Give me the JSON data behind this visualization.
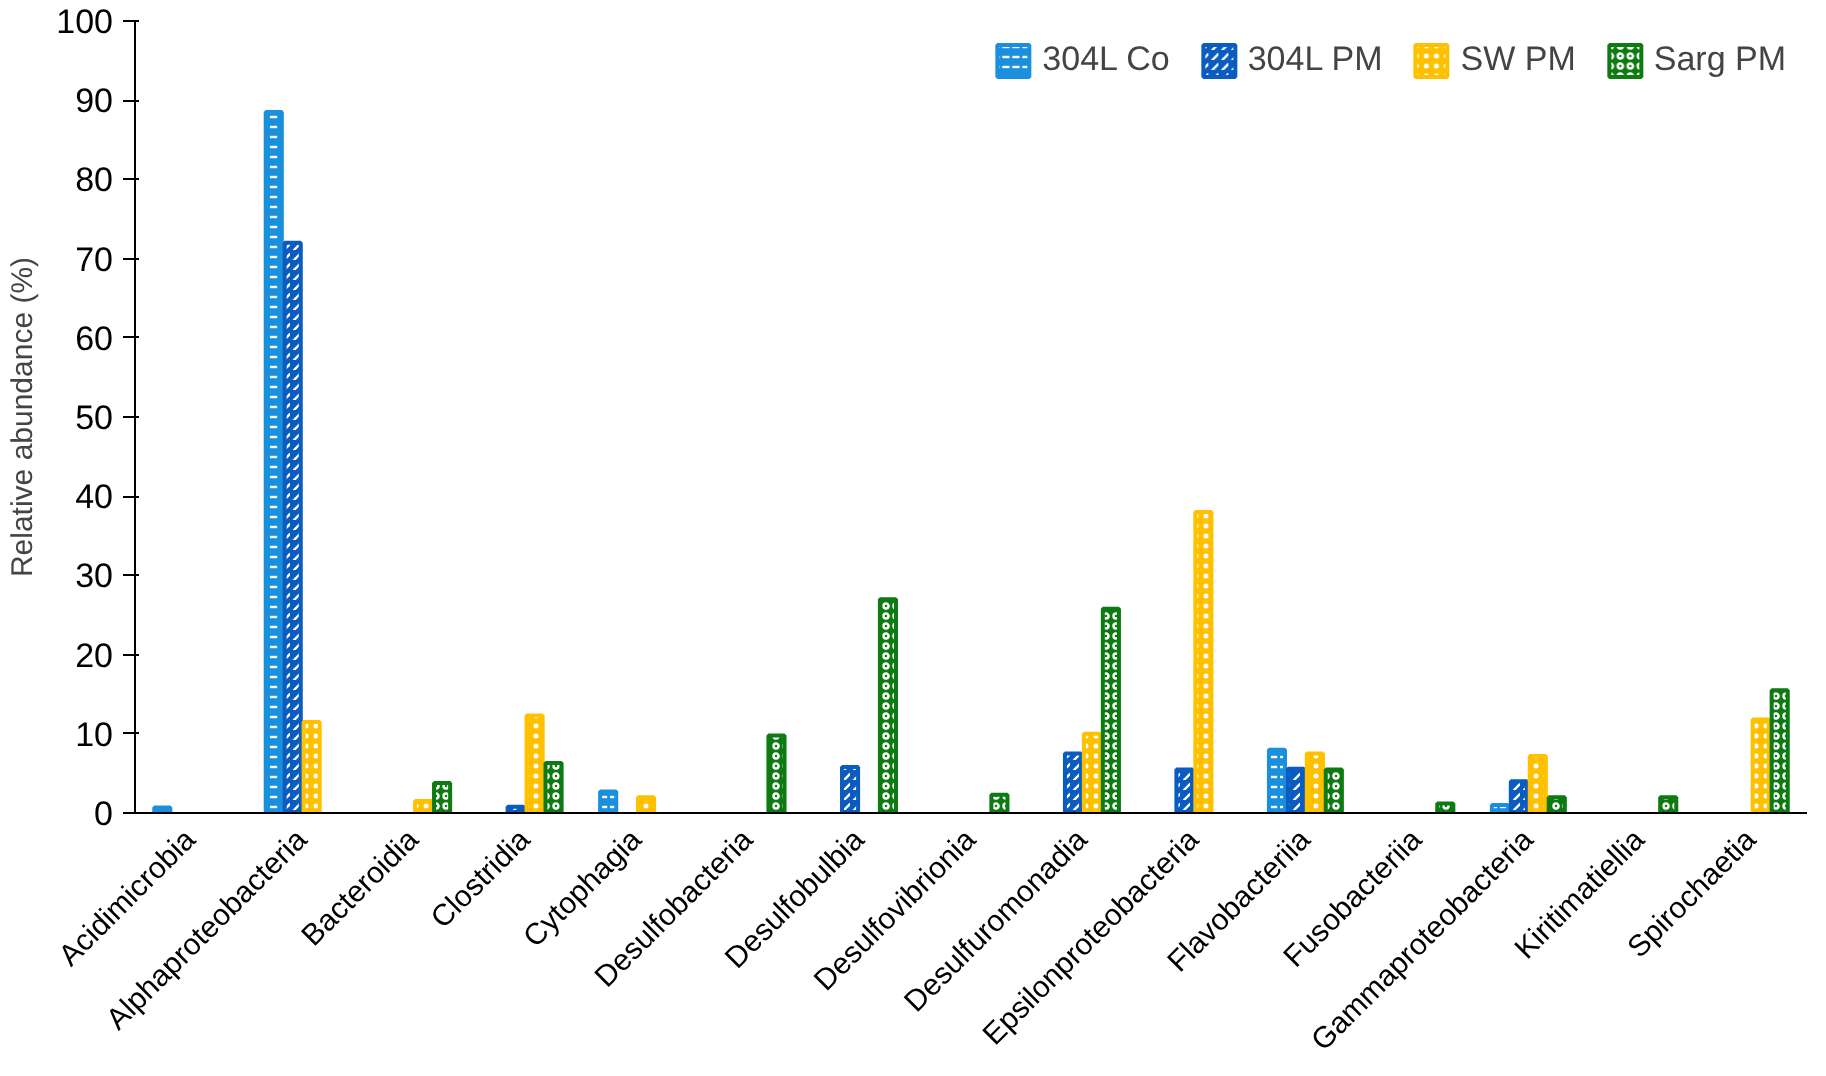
{
  "chart_data": {
    "type": "bar",
    "ylabel": "Relative abundance (%)",
    "categories": [
      "Acidimicrobia",
      "Alphaproteobacteria",
      "Bacteroidia",
      "Clostridia",
      "Cytophagia",
      "Desulfobacteria",
      "Desulfobulbia",
      "Desulfovibrionia",
      "Desulfuromonadia",
      "Epsilonproteobacteria",
      "Flavobacteriia",
      "Fusobacteriia",
      "Gammaproteobacteria",
      "Kiritimatiellia",
      "Spirochaetia"
    ],
    "series": [
      {
        "name": "304L Co",
        "color": "#1a8fdd",
        "values": [
          0.7,
          88.5,
          null,
          null,
          2.7,
          null,
          null,
          null,
          null,
          null,
          8,
          null,
          1,
          null,
          null
        ]
      },
      {
        "name": "304L PM",
        "color": "#0b5cc0",
        "values": [
          null,
          72,
          null,
          0.8,
          null,
          null,
          5.8,
          null,
          7.5,
          5.5,
          5.6,
          null,
          4,
          null,
          null
        ]
      },
      {
        "name": "SW PM",
        "color": "#ffc000",
        "values": [
          null,
          11.5,
          1.5,
          12.3,
          2,
          null,
          null,
          null,
          10,
          38,
          7.5,
          null,
          7.2,
          null,
          11.8
        ]
      },
      {
        "name": "Sarg PM",
        "color": "#0e7a12",
        "values": [
          null,
          null,
          3.8,
          6.3,
          null,
          9.8,
          27,
          2.3,
          25.8,
          null,
          5.5,
          1.2,
          2,
          2,
          15.5
        ]
      }
    ],
    "ylim": [
      0,
      100
    ],
    "yticks": [
      0,
      10,
      20,
      30,
      40,
      50,
      60,
      70,
      80,
      90,
      100
    ],
    "grid": false,
    "legend": "top right"
  }
}
